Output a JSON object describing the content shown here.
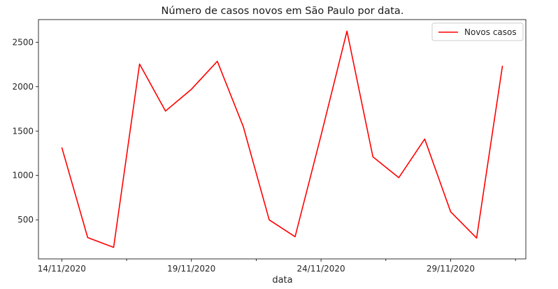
{
  "chart_data": {
    "type": "line",
    "title": "Número de casos novos em São Paulo por data.",
    "xlabel": "data",
    "ylabel": "",
    "x": [
      "14/11/2020",
      "15/11/2020",
      "16/11/2020",
      "17/11/2020",
      "18/11/2020",
      "19/11/2020",
      "20/11/2020",
      "21/11/2020",
      "22/11/2020",
      "23/11/2020",
      "24/11/2020",
      "25/11/2020",
      "26/11/2020",
      "27/11/2020",
      "28/11/2020",
      "29/11/2020",
      "30/11/2020",
      "01/12/2020"
    ],
    "x_tick_labels": [
      "14/11/2020",
      "19/11/2020",
      "24/11/2020",
      "29/11/2020"
    ],
    "series": [
      {
        "name": "Novos casos",
        "color": "#ff0000",
        "values": [
          1315,
          300,
          190,
          2255,
          1725,
          1970,
          2285,
          1550,
          500,
          310,
          1450,
          2625,
          1210,
          975,
          1410,
          590,
          295,
          2235
        ]
      }
    ],
    "y_ticks": [
      500,
      1000,
      1500,
      2000,
      2500
    ],
    "ylim": [
      60,
      2755
    ],
    "grid": false,
    "legend_position": "top-right"
  }
}
